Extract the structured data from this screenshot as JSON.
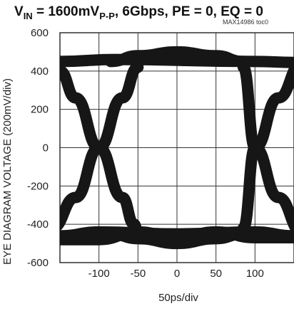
{
  "title": {
    "main": "V",
    "sub": "IN",
    "rest": " = 1600mV",
    "sub2": "P-P",
    "tail": ", 6Gbps, PE = 0, EQ = 0"
  },
  "ref_code": "MAX14986 toc0",
  "chart_data": {
    "type": "line",
    "title": "V_IN = 1600mV_P-P, 6Gbps, PE = 0, EQ = 0",
    "xlabel": "50ps/div",
    "ylabel": "EYE DIAGRAM VOLTAGE (200mV/div)",
    "xlim": [
      -150,
      150
    ],
    "ylim": [
      -600,
      600
    ],
    "x_ticks": [
      -100,
      -50,
      0,
      50,
      100
    ],
    "y_ticks": [
      600,
      400,
      200,
      0,
      -200,
      -400,
      -600
    ],
    "grid": true,
    "series": [
      {
        "x": [
          -150,
          -80,
          100,
          150
        ],
        "y": [
          450,
          460,
          450,
          445
        ]
      },
      {
        "x": [
          -150,
          -100,
          0,
          100,
          150
        ],
        "y": [
          -460,
          -440,
          -450,
          -440,
          -460
        ]
      },
      {
        "x": [
          -150,
          -100,
          -50,
          0,
          50,
          100,
          150
        ],
        "y": [
          -480,
          -480,
          -440,
          -470,
          -440,
          -470,
          -470
        ]
      },
      {
        "x": [
          -85,
          -50,
          0,
          50,
          85
        ],
        "y": [
          450,
          480,
          500,
          480,
          450
        ]
      },
      {
        "x": [
          -85,
          -50,
          0,
          50,
          85
        ],
        "y": [
          -450,
          -475,
          -500,
          -475,
          -450
        ]
      },
      {
        "x": [
          -150,
          -130,
          -100,
          -70,
          -55,
          -50
        ],
        "y": [
          400,
          260,
          0,
          -260,
          -400,
          -440
        ]
      },
      {
        "x": [
          -160,
          -130,
          -100,
          -70,
          -50
        ],
        "y": [
          -420,
          -260,
          0,
          260,
          420
        ]
      },
      {
        "x": [
          85,
          100,
          130,
          160
        ],
        "y": [
          -420,
          0,
          260,
          440
        ]
      },
      {
        "x": [
          85,
          100,
          130,
          160
        ],
        "y": [
          420,
          0,
          -260,
          -440
        ]
      }
    ]
  }
}
